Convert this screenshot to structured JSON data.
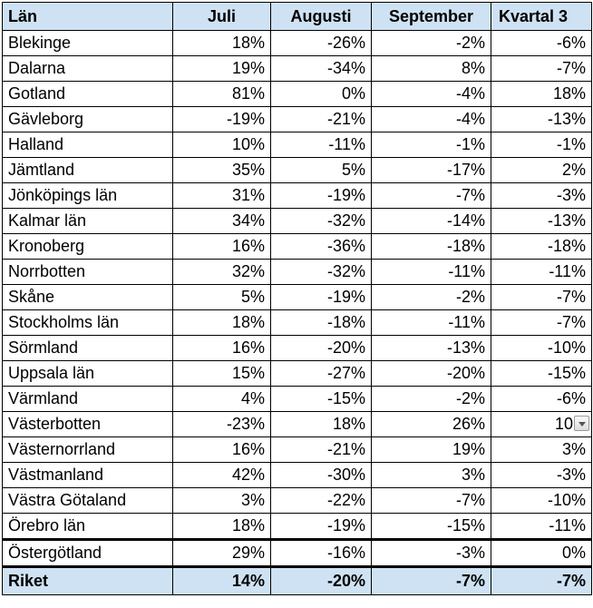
{
  "table": {
    "headers": [
      "Län",
      "Juli",
      "Augusti",
      "September",
      "Kvartal 3"
    ],
    "rows": [
      {
        "lan": "Blekinge",
        "juli": "18%",
        "augusti": "-26%",
        "september": "-2%",
        "kvartal3": "-6%"
      },
      {
        "lan": "Dalarna",
        "juli": "19%",
        "augusti": "-34%",
        "september": "8%",
        "kvartal3": "-7%"
      },
      {
        "lan": "Gotland",
        "juli": "81%",
        "augusti": "0%",
        "september": "-4%",
        "kvartal3": "18%"
      },
      {
        "lan": "Gävleborg",
        "juli": "-19%",
        "augusti": "-21%",
        "september": "-4%",
        "kvartal3": "-13%"
      },
      {
        "lan": "Halland",
        "juli": "10%",
        "augusti": "-11%",
        "september": "-1%",
        "kvartal3": "-1%"
      },
      {
        "lan": "Jämtland",
        "juli": "35%",
        "augusti": "5%",
        "september": "-17%",
        "kvartal3": "2%"
      },
      {
        "lan": "Jönköpings län",
        "juli": "31%",
        "augusti": "-19%",
        "september": "-7%",
        "kvartal3": "-3%"
      },
      {
        "lan": "Kalmar län",
        "juli": "34%",
        "augusti": "-32%",
        "september": "-14%",
        "kvartal3": "-13%"
      },
      {
        "lan": "Kronoberg",
        "juli": "16%",
        "augusti": "-36%",
        "september": "-18%",
        "kvartal3": "-18%"
      },
      {
        "lan": "Norrbotten",
        "juli": "32%",
        "augusti": "-32%",
        "september": "-11%",
        "kvartal3": "-11%"
      },
      {
        "lan": "Skåne",
        "juli": "5%",
        "augusti": "-19%",
        "september": "-2%",
        "kvartal3": "-7%"
      },
      {
        "lan": "Stockholms län",
        "juli": "18%",
        "augusti": "-18%",
        "september": "-11%",
        "kvartal3": "-7%"
      },
      {
        "lan": "Sörmland",
        "juli": "16%",
        "augusti": "-20%",
        "september": "-13%",
        "kvartal3": "-10%"
      },
      {
        "lan": "Uppsala län",
        "juli": "15%",
        "augusti": "-27%",
        "september": "-20%",
        "kvartal3": "-15%"
      },
      {
        "lan": "Värmland",
        "juli": "4%",
        "augusti": "-15%",
        "september": "-2%",
        "kvartal3": "-6%"
      },
      {
        "lan": "Västerbotten",
        "juli": "-23%",
        "augusti": "18%",
        "september": "26%",
        "kvartal3": "10"
      },
      {
        "lan": "Västernorrland",
        "juli": "16%",
        "augusti": "-21%",
        "september": "19%",
        "kvartal3": "3%"
      },
      {
        "lan": "Västmanland",
        "juli": "42%",
        "augusti": "-30%",
        "september": "3%",
        "kvartal3": "-3%"
      },
      {
        "lan": "Västra Götaland",
        "juli": "3%",
        "augusti": "-22%",
        "september": "-7%",
        "kvartal3": "-10%"
      },
      {
        "lan": "Örebro län",
        "juli": "18%",
        "augusti": "-19%",
        "september": "-15%",
        "kvartal3": "-11%"
      },
      {
        "lan": "Östergötland",
        "juli": "29%",
        "augusti": "-16%",
        "september": "-3%",
        "kvartal3": "0%"
      }
    ],
    "total": {
      "lan": "Riket",
      "juli": "14%",
      "augusti": "-20%",
      "september": "-7%",
      "kvartal3": "-7%"
    }
  },
  "colors": {
    "header_bg": "#cfe2f3",
    "border": "#000000"
  },
  "icons": {
    "cell_dropdown": "chevron-down-icon"
  }
}
